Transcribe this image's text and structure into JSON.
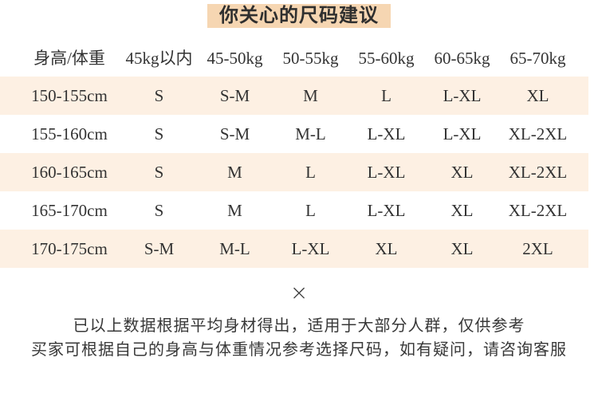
{
  "title": "你关心的尺码建议",
  "table": {
    "headers": [
      "身高/体重",
      "45kg以内",
      "45-50kg",
      "50-55kg",
      "55-60kg",
      "60-65kg",
      "65-70kg"
    ],
    "rows": [
      [
        "150-155cm",
        "S",
        "S-M",
        "M",
        "L",
        "L-XL",
        "XL"
      ],
      [
        "155-160cm",
        "S",
        "S-M",
        "M-L",
        "L-XL",
        "L-XL",
        "XL-2XL"
      ],
      [
        "160-165cm",
        "S",
        "M",
        "L",
        "L-XL",
        "XL",
        "XL-2XL"
      ],
      [
        "165-170cm",
        "S",
        "M",
        "L",
        "L-XL",
        "XL",
        "XL-2XL"
      ],
      [
        "170-175cm",
        "S-M",
        "M-L",
        "L-XL",
        "XL",
        "XL",
        "2XL"
      ]
    ]
  },
  "divider_symbol": "×",
  "notes": [
    "已以上数据根据平均身材得出，适用于大部分人群，仅供参考",
    "买家可根据自己的身高与体重情况参考选择尺码，如有疑问，请咨询客服"
  ],
  "colors": {
    "title_highlight": "#f6d6b2",
    "row_stripe": "#fdf0e3",
    "text": "#333333",
    "background": "#ffffff"
  }
}
